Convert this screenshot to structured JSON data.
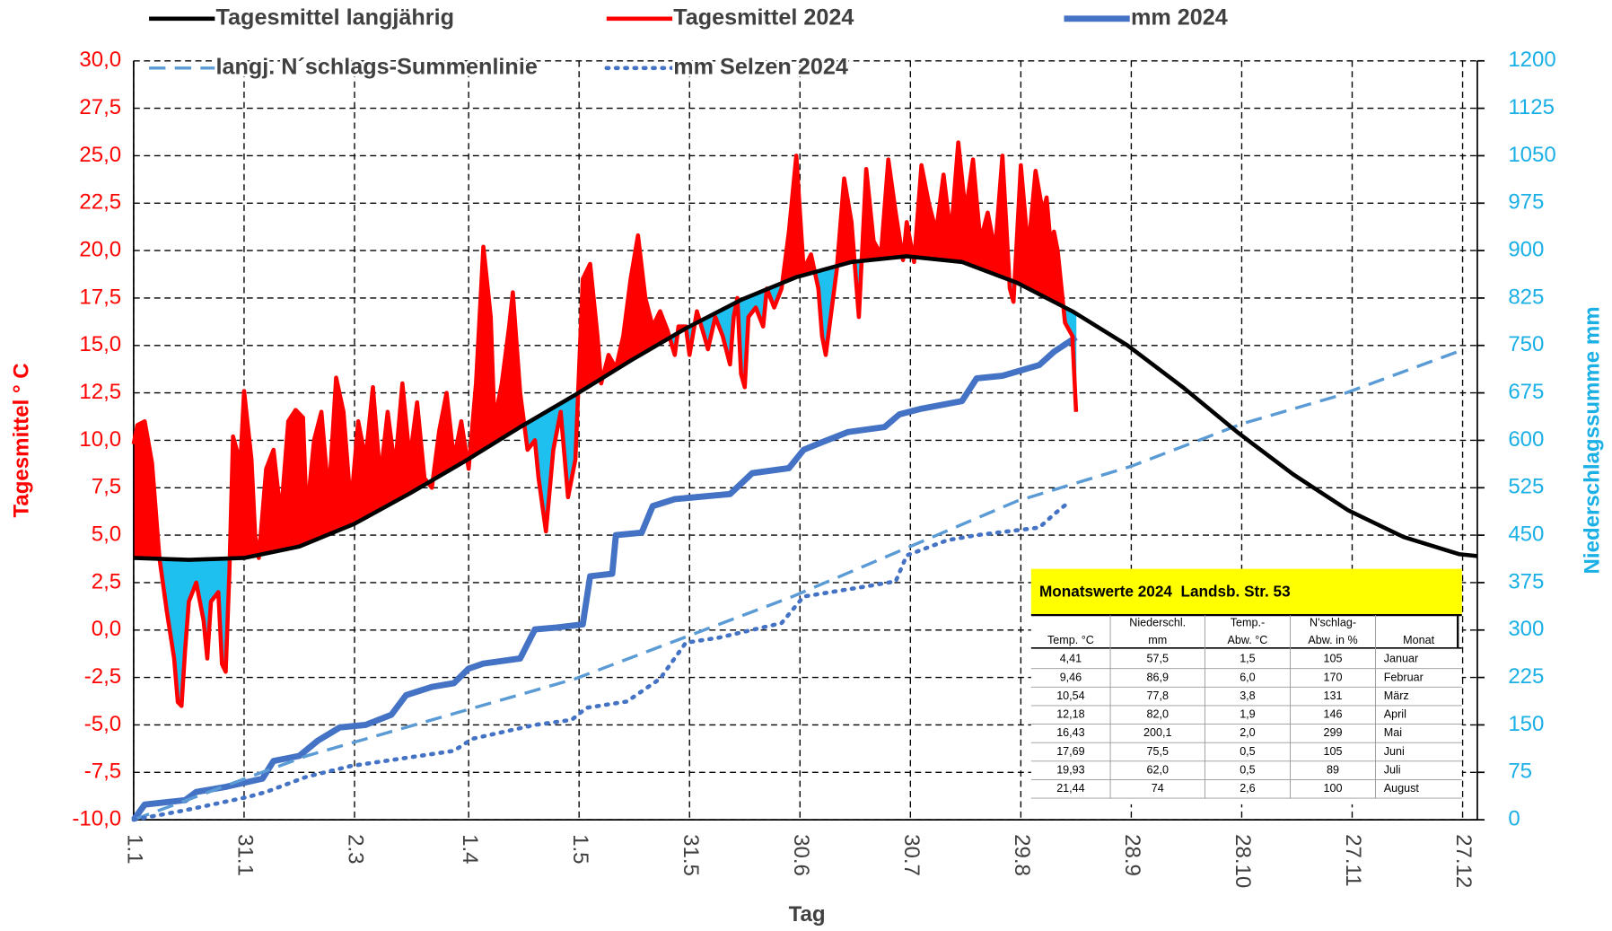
{
  "chart_data": {
    "type": "line",
    "x_label": "Tag",
    "y_label": "Tagesmittel ° C",
    "y2_label": "Niederschlagssumme mm",
    "y_label_color": "#ff0000",
    "y2_label_color": "#1ab0e6",
    "grid": true,
    "xlim": [
      1,
      366
    ],
    "xticks": [
      {
        "value": 1,
        "label": "1.1"
      },
      {
        "value": 31,
        "label": "31.1"
      },
      {
        "value": 61,
        "label": "2.3"
      },
      {
        "value": 92,
        "label": "1.4"
      },
      {
        "value": 122,
        "label": "1.5"
      },
      {
        "value": 152,
        "label": "31.5"
      },
      {
        "value": 182,
        "label": "30.6"
      },
      {
        "value": 212,
        "label": "30.7"
      },
      {
        "value": 242,
        "label": "29.8"
      },
      {
        "value": 272,
        "label": "28.9"
      },
      {
        "value": 302,
        "label": "28.10"
      },
      {
        "value": 332,
        "label": "27.11"
      },
      {
        "value": 362,
        "label": "27.12"
      }
    ],
    "ylim": [
      -10,
      30
    ],
    "yticks": [
      {
        "value": -10,
        "label": "-10,0"
      },
      {
        "value": -7.5,
        "label": "-7,5"
      },
      {
        "value": -5,
        "label": "-5,0"
      },
      {
        "value": -2.5,
        "label": "-2,5"
      },
      {
        "value": 0,
        "label": "0,0"
      },
      {
        "value": 2.5,
        "label": "2,5"
      },
      {
        "value": 5,
        "label": "5,0"
      },
      {
        "value": 7.5,
        "label": "7,5"
      },
      {
        "value": 10,
        "label": "10,0"
      },
      {
        "value": 12.5,
        "label": "12,5"
      },
      {
        "value": 15,
        "label": "15,0"
      },
      {
        "value": 17.5,
        "label": "17,5"
      },
      {
        "value": 20,
        "label": "20,0"
      },
      {
        "value": 22.5,
        "label": "22,5"
      },
      {
        "value": 25,
        "label": "25,0"
      },
      {
        "value": 27.5,
        "label": "27,5"
      },
      {
        "value": 30,
        "label": "30,0"
      }
    ],
    "y2lim": [
      0,
      1200
    ],
    "y2ticks": [
      0,
      75,
      150,
      225,
      300,
      375,
      450,
      525,
      600,
      675,
      750,
      825,
      900,
      975,
      1050,
      1125,
      1200
    ],
    "fill_between": {
      "above_color": "#ff0000",
      "below_color": "#1ec0ef"
    },
    "series": [
      {
        "name": "Tagesmittel langjährig",
        "color": "#000000",
        "dash": "solid",
        "line_width": 4,
        "x": [
          1,
          16,
          31,
          46,
          61,
          76,
          91,
          106,
          121,
          136,
          151,
          166,
          181,
          196,
          211,
          226,
          241,
          256,
          271,
          286,
          301,
          316,
          331,
          346,
          361,
          366
        ],
        "values": [
          3.8,
          3.7,
          3.8,
          4.4,
          5.6,
          7.2,
          8.9,
          10.7,
          12.4,
          14.2,
          15.9,
          17.4,
          18.6,
          19.4,
          19.7,
          19.4,
          18.3,
          16.8,
          15.0,
          12.8,
          10.4,
          8.2,
          6.3,
          4.9,
          4.0,
          3.9
        ]
      },
      {
        "name": "Tagesmittel 2024",
        "color": "#ff0000",
        "dash": "solid",
        "line_width": 4,
        "x": [
          1,
          2,
          4,
          6,
          8,
          10,
          12,
          13,
          14,
          15,
          16,
          18,
          20,
          21,
          22,
          24,
          25,
          26,
          27,
          28,
          30,
          31,
          33,
          34,
          35,
          37,
          39,
          41,
          43,
          45,
          47,
          48,
          50,
          52,
          54,
          56,
          58,
          60,
          62,
          64,
          66,
          68,
          70,
          72,
          74,
          76,
          78,
          80,
          82,
          84,
          86,
          88,
          90,
          92,
          94,
          96,
          98,
          99,
          101,
          103,
          104,
          106,
          108,
          110,
          111,
          113,
          115,
          117,
          119,
          121,
          123,
          125,
          127,
          128,
          130,
          132,
          134,
          136,
          138,
          140,
          142,
          144,
          146,
          148,
          149,
          151,
          152,
          154,
          156,
          157,
          159,
          161,
          163,
          164,
          165,
          166,
          167,
          168,
          170,
          172,
          173,
          175,
          177,
          179,
          181,
          183,
          185,
          187,
          188,
          189,
          191,
          192,
          194,
          196,
          198,
          200,
          202,
          204,
          206,
          208,
          210,
          211,
          213,
          215,
          217,
          219,
          221,
          223,
          225,
          227,
          229,
          231,
          233,
          235,
          237,
          239,
          240,
          242,
          244,
          246,
          248,
          249,
          250,
          251,
          252,
          254,
          256,
          257
        ],
        "values": [
          9.8,
          10.8,
          11.0,
          8.8,
          3.8,
          1.0,
          -1.5,
          -3.8,
          -4.0,
          -1.0,
          1.5,
          2.5,
          0.5,
          -1.5,
          1.5,
          2.0,
          -1.8,
          -2.2,
          3.0,
          10.2,
          8.8,
          12.6,
          9.0,
          5.0,
          3.8,
          8.5,
          9.5,
          6.0,
          11.0,
          11.6,
          11.2,
          6.0,
          10.0,
          11.5,
          7.0,
          13.3,
          11.5,
          6.5,
          11.0,
          9.0,
          12.8,
          8.0,
          11.5,
          8.5,
          13.0,
          9.0,
          12.0,
          8.0,
          7.5,
          10.5,
          12.5,
          9.0,
          11.0,
          8.5,
          13.0,
          20.2,
          16.5,
          11.0,
          13.0,
          16.0,
          17.8,
          12.5,
          9.5,
          10.0,
          8.0,
          5.2,
          9.5,
          11.5,
          7.0,
          9.0,
          18.5,
          19.3,
          15.5,
          13.0,
          14.5,
          13.8,
          15.5,
          18.5,
          20.8,
          17.5,
          16.0,
          16.8,
          15.8,
          14.5,
          16.0,
          16.0,
          14.5,
          16.8,
          15.5,
          14.8,
          16.5,
          15.5,
          14.0,
          16.5,
          17.5,
          13.5,
          12.8,
          16.5,
          17.0,
          16.0,
          18.0,
          17.0,
          18.0,
          21.0,
          25.0,
          19.0,
          19.8,
          18.0,
          15.5,
          14.5,
          17.5,
          19.0,
          23.8,
          21.5,
          16.5,
          24.3,
          20.5,
          19.8,
          24.8,
          22.0,
          19.5,
          21.5,
          19.4,
          24.5,
          22.5,
          21.0,
          24.0,
          20.8,
          25.7,
          22.0,
          24.8,
          20.5,
          22.0,
          20.0,
          25.0,
          18.0,
          17.3,
          24.5,
          20.0,
          24.2,
          22.0,
          22.8,
          20.5,
          21.0,
          20.0,
          16.2,
          15.5,
          11.5
        ]
      },
      {
        "name": "mm 2024",
        "color": "#4472c4",
        "dash": "solid",
        "line_width": 6,
        "axis": "y2",
        "x": [
          1,
          4,
          15,
          18,
          26,
          36,
          39,
          46,
          51,
          57,
          64,
          71,
          75,
          82,
          88,
          92,
          96,
          106,
          110,
          116,
          123,
          125,
          131,
          132,
          139,
          142,
          148,
          163,
          169,
          179,
          183,
          188,
          195,
          205,
          209,
          215,
          226,
          230,
          237,
          247,
          251,
          257
        ],
        "values": [
          0,
          24,
          31,
          44,
          52,
          65,
          93,
          101,
          125,
          146,
          150,
          166,
          197,
          210,
          216,
          239,
          247,
          255,
          301,
          304,
          309,
          385,
          389,
          450,
          454,
          496,
          507,
          515,
          548,
          556,
          585,
          597,
          613,
          621,
          641,
          650,
          662,
          698,
          702,
          719,
          740,
          763
        ]
      },
      {
        "name": "langj. N´schlags-Summenlinie",
        "color": "#5b9bd5",
        "dash": "dashed",
        "line_width": 3,
        "axis": "y2",
        "x": [
          1,
          48,
          121,
          180,
          241,
          272,
          302,
          328,
          362
        ],
        "values": [
          0,
          101,
          223,
          353,
          504,
          559,
          626,
          670,
          743
        ]
      },
      {
        "name": "mm Selzen 2024",
        "color": "#4472c4",
        "dash": "dotted",
        "line_width": 4,
        "axis": "y2",
        "x": [
          1,
          15,
          32,
          37,
          48,
          60,
          88,
          93,
          110,
          120,
          124,
          135,
          144,
          151,
          160,
          177,
          183,
          200,
          208,
          211,
          222,
          230,
          247,
          251,
          255
        ],
        "values": [
          0,
          15,
          36,
          44,
          68,
          85,
          109,
          128,
          150,
          158,
          177,
          187,
          223,
          280,
          288,
          311,
          353,
          369,
          377,
          418,
          442,
          450,
          462,
          483,
          502
        ]
      }
    ]
  },
  "table": {
    "title": "Monatswerte 2024  Landsb. Str. 53",
    "title_color": "#ffff00",
    "columns": [
      [
        "Temp. °C"
      ],
      [
        "Niederschl.",
        "mm"
      ],
      [
        "Temp.-",
        "Abw. °C"
      ],
      [
        "N'schlag-",
        "Abw. in %"
      ],
      [
        "Monat"
      ]
    ],
    "rows": [
      [
        "4,41",
        "57,5",
        "1,5",
        "105",
        "Januar"
      ],
      [
        "9,46",
        "86,9",
        "6,0",
        "170",
        "Februar"
      ],
      [
        "10,54",
        "77,8",
        "3,8",
        "131",
        "März"
      ],
      [
        "12,18",
        "82,0",
        "1,9",
        "146",
        "April"
      ],
      [
        "16,43",
        "200,1",
        "2,0",
        "299",
        "Mai"
      ],
      [
        "17,69",
        "75,5",
        "0,5",
        "105",
        "Juni"
      ],
      [
        "19,93",
        "62,0",
        "0,5",
        "89",
        "Juli"
      ],
      [
        "21,44",
        "74",
        "2,6",
        "100",
        "August"
      ]
    ]
  }
}
